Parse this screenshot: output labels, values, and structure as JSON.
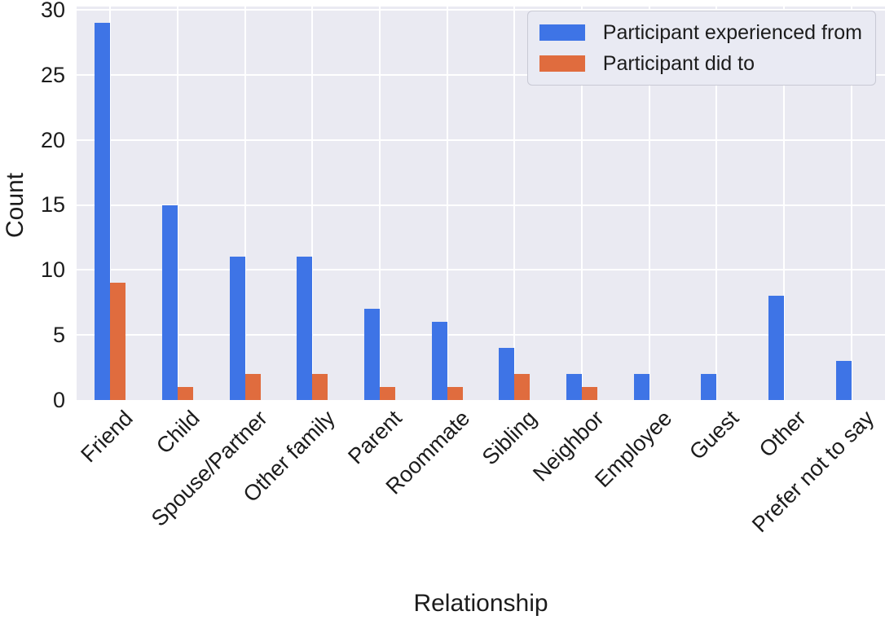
{
  "chart_data": {
    "type": "bar",
    "title": "",
    "xlabel": "Relationship",
    "ylabel": "Count",
    "categories": [
      "Friend",
      "Child",
      "Spouse/Partner",
      "Other family",
      "Parent",
      "Roommate",
      "Sibling",
      "Neighbor",
      "Employee",
      "Guest",
      "Other",
      "Prefer not to say"
    ],
    "series": [
      {
        "name": "Participant experienced from",
        "color": "#3E74E6",
        "values": [
          29,
          15,
          11,
          11,
          7,
          6,
          4,
          2,
          2,
          2,
          8,
          3
        ]
      },
      {
        "name": "Participant did to",
        "color": "#E06C3E",
        "values": [
          9,
          1,
          2,
          2,
          1,
          1,
          2,
          1,
          0,
          0,
          0,
          0
        ]
      }
    ],
    "yticks": [
      0,
      5,
      10,
      15,
      20,
      25,
      30
    ],
    "ylim": [
      0,
      30.25
    ],
    "grid": true,
    "grid_color": "#FFFFFF",
    "plot_background": "#EAEAF2",
    "figure_background": "#FFFFFF",
    "text_color": "#1c1c1c",
    "legend_position": "upper right",
    "x_tick_rotation": 45
  }
}
